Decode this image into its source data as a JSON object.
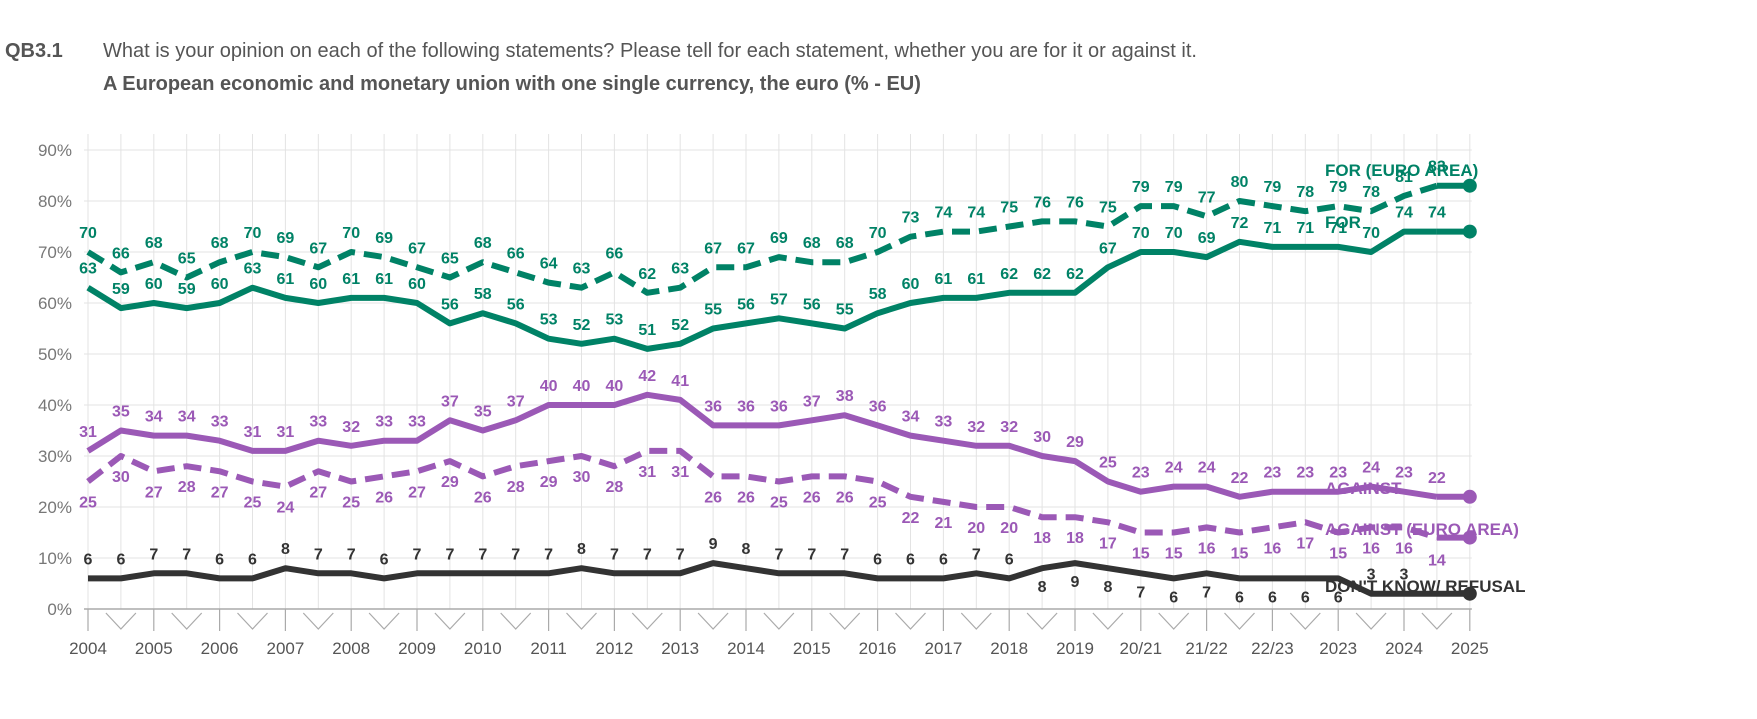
{
  "header": {
    "code": "QB3.1",
    "question": "What is your opinion on each of the following statements? Please tell for each statement, whether you are for it or against it.",
    "subtitle": "A European economic and monetary union with one single currency, the euro (% - EU)"
  },
  "colors": {
    "for": "#008266",
    "against": "#9b59b6",
    "dk": "#333333",
    "grid": "#e3e3e3",
    "axis": "#aaaaaa"
  },
  "chart_data": {
    "type": "line",
    "yticks": [
      "0%",
      "10%",
      "20%",
      "30%",
      "40%",
      "50%",
      "60%",
      "70%",
      "80%",
      "90%"
    ],
    "ylim": [
      0,
      90
    ],
    "xlabels": [
      "2004",
      "2005",
      "2006",
      "2007",
      "2008",
      "2009",
      "2010",
      "2011",
      "2012",
      "2013",
      "2014",
      "2015",
      "2016",
      "2017",
      "2018",
      "2019",
      "20/21",
      "21/22",
      "22/23",
      "2023",
      "2024",
      "2025"
    ],
    "xlabel_points": [
      0,
      2,
      4,
      6,
      8,
      10,
      12,
      14,
      16,
      18,
      20,
      22,
      24,
      26,
      28,
      30,
      32,
      34,
      36,
      38,
      40,
      42
    ],
    "n_points": 43,
    "series": [
      {
        "name": "FOR (EURO AREA)",
        "style": "dashed",
        "color": "for",
        "values": [
          70,
          66,
          68,
          65,
          68,
          70,
          69,
          67,
          70,
          69,
          67,
          65,
          68,
          66,
          64,
          63,
          66,
          62,
          63,
          67,
          67,
          69,
          68,
          68,
          70,
          73,
          74,
          74,
          75,
          76,
          76,
          75,
          79,
          79,
          77,
          80,
          79,
          78,
          79,
          78,
          81,
          83,
          null
        ]
      },
      {
        "name": "FOR",
        "style": "solid",
        "color": "for",
        "values": [
          63,
          59,
          60,
          59,
          60,
          63,
          61,
          60,
          61,
          61,
          60,
          56,
          58,
          56,
          53,
          52,
          53,
          51,
          52,
          55,
          56,
          57,
          56,
          55,
          58,
          60,
          61,
          61,
          62,
          62,
          62,
          67,
          70,
          70,
          69,
          72,
          71,
          71,
          71,
          70,
          74,
          74,
          null
        ]
      },
      {
        "name": "AGAINST",
        "style": "solid",
        "color": "against",
        "values": [
          31,
          35,
          34,
          34,
          33,
          31,
          31,
          33,
          32,
          33,
          33,
          37,
          35,
          37,
          40,
          40,
          40,
          42,
          41,
          36,
          36,
          36,
          37,
          38,
          36,
          34,
          33,
          32,
          32,
          30,
          29,
          25,
          23,
          24,
          24,
          22,
          23,
          23,
          23,
          24,
          23,
          22,
          null
        ]
      },
      {
        "name": "AGAINST (EURO AREA)",
        "style": "dashed",
        "color": "against",
        "values": [
          25,
          30,
          27,
          28,
          27,
          25,
          24,
          27,
          25,
          26,
          27,
          29,
          26,
          28,
          29,
          30,
          28,
          31,
          31,
          26,
          26,
          25,
          26,
          26,
          25,
          22,
          21,
          20,
          20,
          18,
          18,
          17,
          15,
          15,
          16,
          15,
          16,
          17,
          15,
          16,
          16,
          14,
          null
        ]
      },
      {
        "name": "DON'T KNOW/ REFUSAL",
        "style": "solid",
        "color": "dk",
        "values": [
          6,
          6,
          7,
          7,
          6,
          6,
          8,
          7,
          7,
          6,
          7,
          7,
          7,
          7,
          7,
          8,
          7,
          7,
          7,
          9,
          8,
          7,
          7,
          7,
          6,
          6,
          6,
          7,
          6,
          8,
          9,
          8,
          7,
          6,
          7,
          6,
          6,
          6,
          6,
          3,
          3,
          null,
          null
        ]
      }
    ]
  }
}
